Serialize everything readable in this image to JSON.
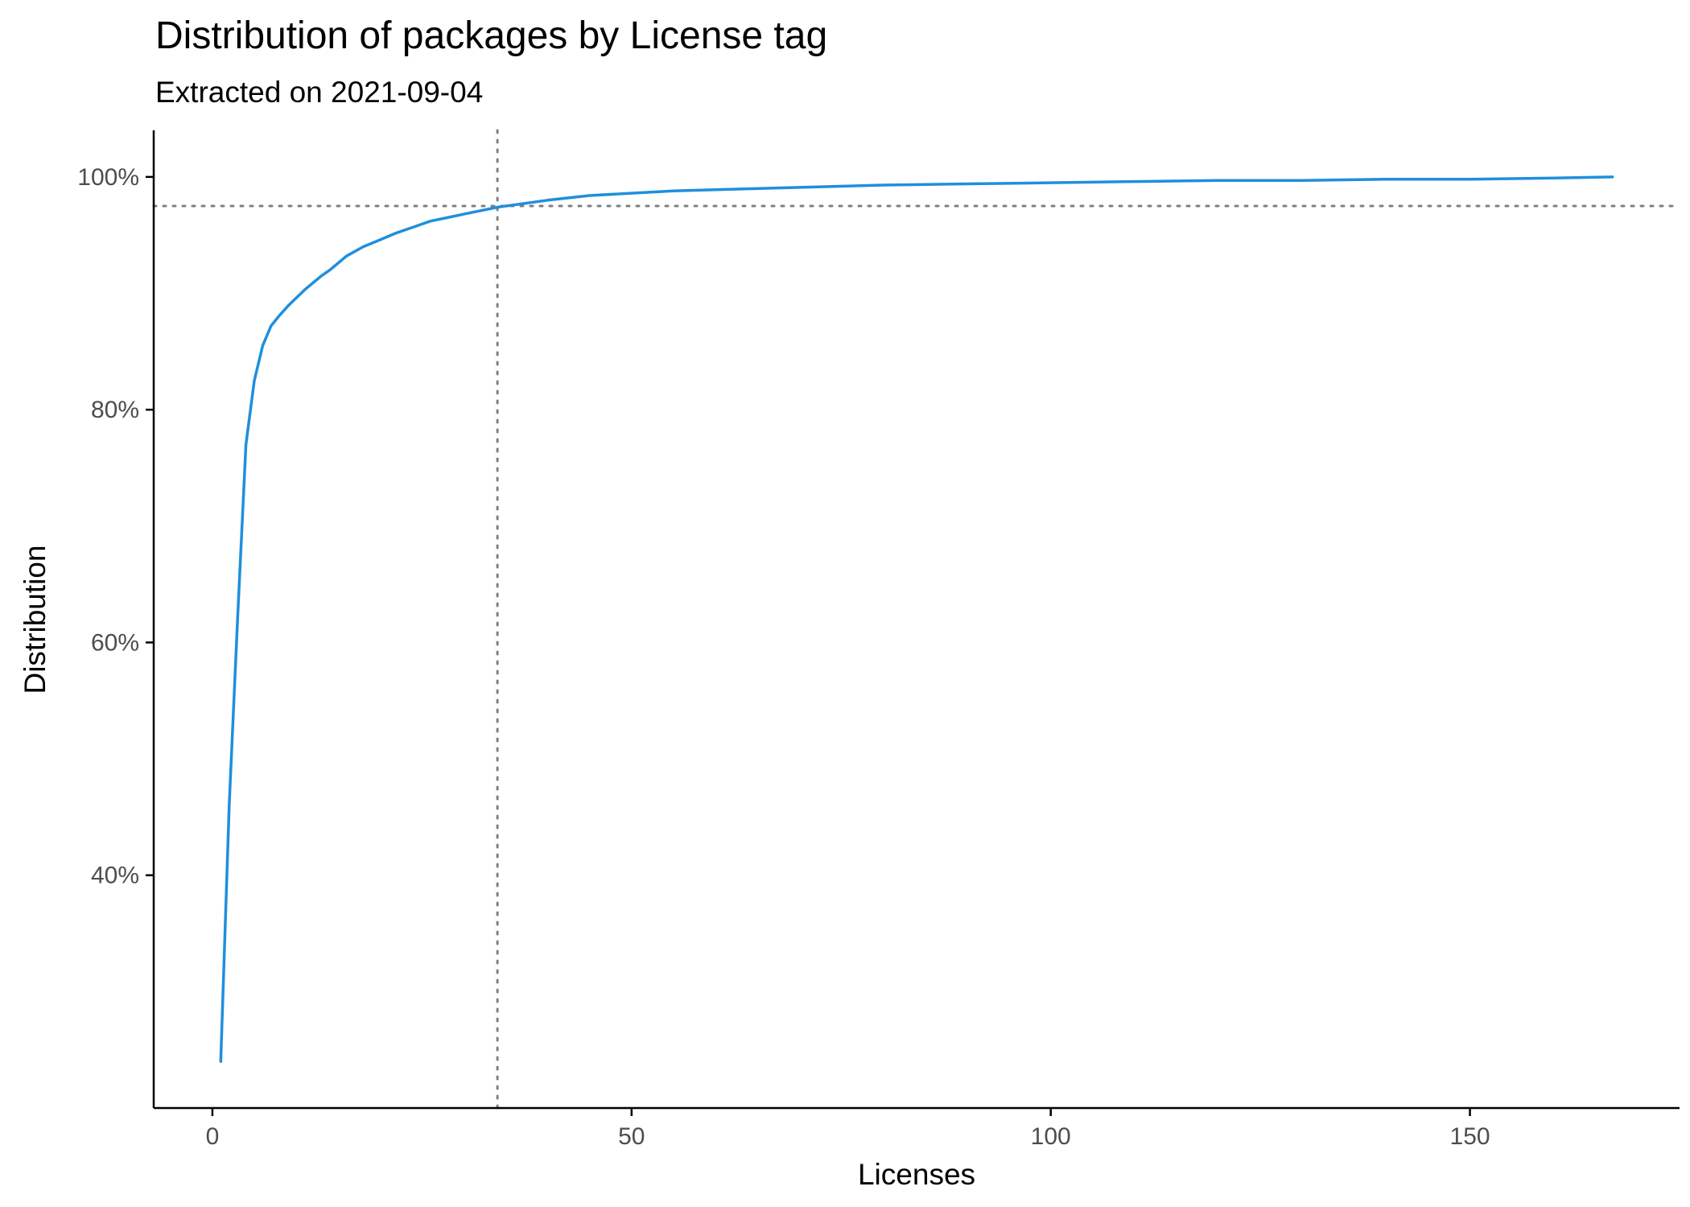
{
  "chart_data": {
    "type": "line",
    "title": "Distribution of packages by License tag",
    "subtitle": "Extracted on 2021-09-04",
    "xlabel": "Licenses",
    "ylabel": "Distribution",
    "xlim": [
      -7,
      175
    ],
    "ylim": [
      0.2,
      1.04
    ],
    "x_ticks": [
      0,
      50,
      100,
      150
    ],
    "x_tick_labels": [
      "0",
      "50",
      "100",
      "150"
    ],
    "y_ticks": [
      0.4,
      0.6,
      0.8,
      1.0
    ],
    "y_tick_labels": [
      "40%",
      "60%",
      "80%",
      "100%"
    ],
    "grid": false,
    "legend": "none",
    "line_color": "#1f8fdc",
    "reference_line_color": "#808080",
    "reference_lines": {
      "x": 34,
      "y": 0.975
    },
    "series": [
      {
        "x": [
          1,
          2,
          3,
          4,
          5,
          6,
          7,
          8,
          9,
          10,
          11,
          12,
          13,
          14,
          15,
          16,
          18,
          20,
          22,
          24,
          26,
          28,
          30,
          32,
          34,
          36,
          38,
          40,
          45,
          50,
          55,
          60,
          70,
          80,
          90,
          100,
          110,
          120,
          130,
          140,
          150,
          160,
          167
        ],
        "y": [
          0.24,
          0.46,
          0.62,
          0.77,
          0.825,
          0.855,
          0.872,
          0.881,
          0.889,
          0.896,
          0.903,
          0.909,
          0.915,
          0.92,
          0.926,
          0.932,
          0.94,
          0.946,
          0.952,
          0.957,
          0.962,
          0.965,
          0.968,
          0.971,
          0.974,
          0.976,
          0.978,
          0.98,
          0.984,
          0.986,
          0.988,
          0.989,
          0.991,
          0.993,
          0.994,
          0.995,
          0.996,
          0.997,
          0.997,
          0.998,
          0.998,
          0.999,
          1.0
        ]
      }
    ]
  }
}
